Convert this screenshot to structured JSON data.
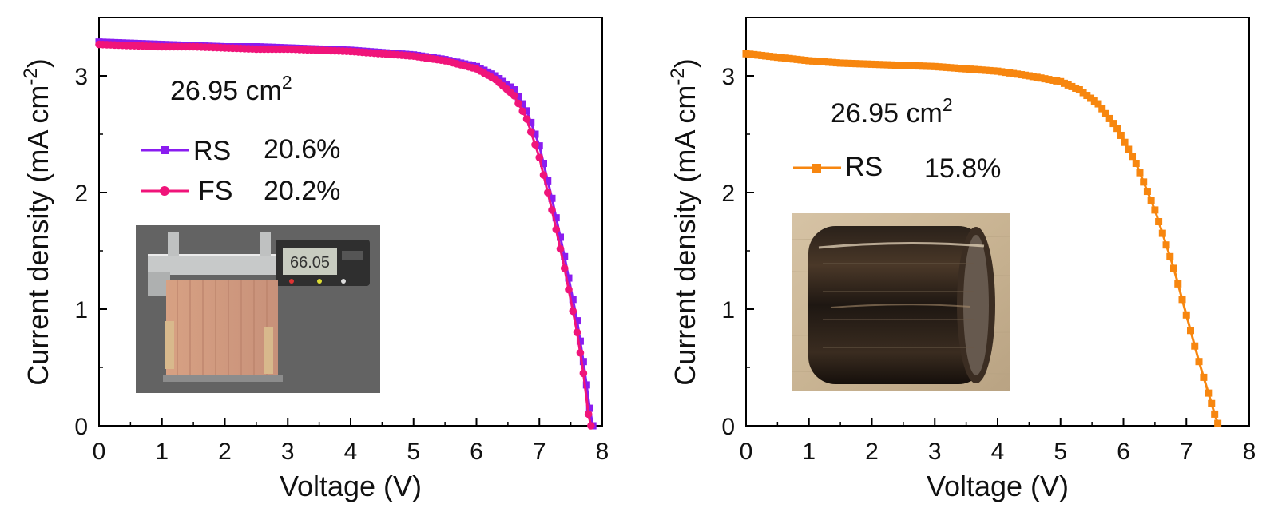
{
  "chart_data": [
    {
      "type": "line",
      "xlabel": "Voltage (V)",
      "ylabel_main": "Current density (mA cm",
      "ylabel_sup": "-2",
      "ylabel_tail": ")",
      "xlim": [
        0,
        8
      ],
      "ylim": [
        0,
        3.5
      ],
      "xticks": [
        0,
        1,
        2,
        3,
        4,
        5,
        6,
        7,
        8
      ],
      "yticks": [
        0,
        1,
        2,
        3
      ],
      "grid": false,
      "legend_position": "middle-left",
      "annotations": [
        {
          "label": "area",
          "text_main": "26.95 cm",
          "text_sup": "2"
        }
      ],
      "inset": {
        "description": "photo of large-area module measured with digital caliper",
        "caliper_reading": "66.05"
      },
      "series": [
        {
          "name": "RS",
          "value_label": "20.6%",
          "color": "#8a1cf0",
          "marker": "square",
          "x": [
            0,
            0.5,
            1.0,
            1.5,
            2.0,
            2.5,
            3.0,
            3.5,
            4.0,
            4.5,
            5.0,
            5.5,
            6.0,
            6.3,
            6.6,
            6.8,
            7.0,
            7.2,
            7.4,
            7.6,
            7.7,
            7.8,
            7.85
          ],
          "y": [
            3.29,
            3.28,
            3.27,
            3.26,
            3.25,
            3.25,
            3.24,
            3.23,
            3.22,
            3.2,
            3.18,
            3.14,
            3.08,
            3.0,
            2.88,
            2.7,
            2.4,
            1.95,
            1.45,
            0.9,
            0.55,
            0.15,
            0.0
          ]
        },
        {
          "name": "FS",
          "value_label": "20.2%",
          "color": "#f0147a",
          "marker": "circle",
          "x": [
            0,
            0.5,
            1.0,
            1.5,
            2.0,
            2.5,
            3.0,
            3.5,
            4.0,
            4.5,
            5.0,
            5.5,
            6.0,
            6.3,
            6.6,
            6.8,
            7.0,
            7.2,
            7.4,
            7.6,
            7.7,
            7.78,
            7.82
          ],
          "y": [
            3.27,
            3.26,
            3.25,
            3.25,
            3.24,
            3.23,
            3.23,
            3.22,
            3.21,
            3.19,
            3.17,
            3.13,
            3.06,
            2.97,
            2.83,
            2.63,
            2.3,
            1.85,
            1.35,
            0.8,
            0.45,
            0.1,
            0.0
          ]
        }
      ]
    },
    {
      "type": "line",
      "xlabel": "Voltage (V)",
      "ylabel_main": "Current density (mA cm",
      "ylabel_sup": "-2",
      "ylabel_tail": ")",
      "xlim": [
        0,
        8
      ],
      "ylim": [
        0,
        3.5
      ],
      "xticks": [
        0,
        1,
        2,
        3,
        4,
        5,
        6,
        7,
        8
      ],
      "yticks": [
        0,
        1,
        2,
        3
      ],
      "grid": false,
      "legend_position": "upper-left",
      "annotations": [
        {
          "label": "area",
          "text_main": "26.95 cm",
          "text_sup": "2"
        }
      ],
      "inset": {
        "description": "photo of flexible module rolled into a cylinder"
      },
      "series": [
        {
          "name": "RS",
          "value_label": "15.8%",
          "color": "#f7860f",
          "marker": "square",
          "x": [
            0,
            0.5,
            1.0,
            1.5,
            2.0,
            2.5,
            3.0,
            3.5,
            4.0,
            4.5,
            5.0,
            5.3,
            5.6,
            5.9,
            6.2,
            6.5,
            6.8,
            7.0,
            7.2,
            7.35,
            7.45,
            7.5
          ],
          "y": [
            3.19,
            3.16,
            3.13,
            3.11,
            3.1,
            3.09,
            3.08,
            3.06,
            3.04,
            3.0,
            2.95,
            2.88,
            2.76,
            2.55,
            2.25,
            1.85,
            1.35,
            0.95,
            0.55,
            0.28,
            0.1,
            0.02
          ]
        }
      ]
    }
  ]
}
